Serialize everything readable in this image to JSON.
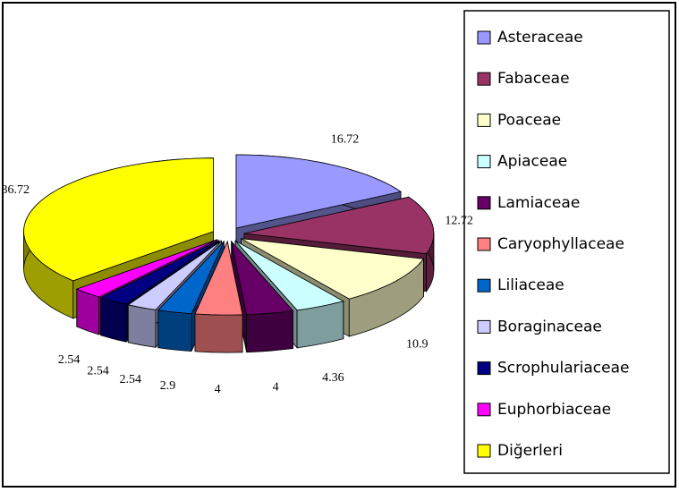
{
  "chart_data": {
    "type": "pie",
    "three_d": true,
    "exploded": true,
    "categories": [
      "Asteraceae",
      "Fabaceae",
      "Poaceae",
      "Apiaceae",
      "Lamiaceae",
      "Caryophyllaceae",
      "Liliaceae",
      "Boraginaceae",
      "Scrophulariaceae",
      "Euphorbiaceae",
      "Diğerleri"
    ],
    "values": [
      16.72,
      12.72,
      10.9,
      4.36,
      4,
      4,
      2.9,
      2.54,
      2.54,
      2.54,
      36.72
    ],
    "colors": [
      "#9999ff",
      "#993366",
      "#ffffcc",
      "#ccffff",
      "#660066",
      "#ff8080",
      "#0066cc",
      "#ccccff",
      "#000080",
      "#ff00ff",
      "#ffff00"
    ],
    "legend": "right"
  }
}
